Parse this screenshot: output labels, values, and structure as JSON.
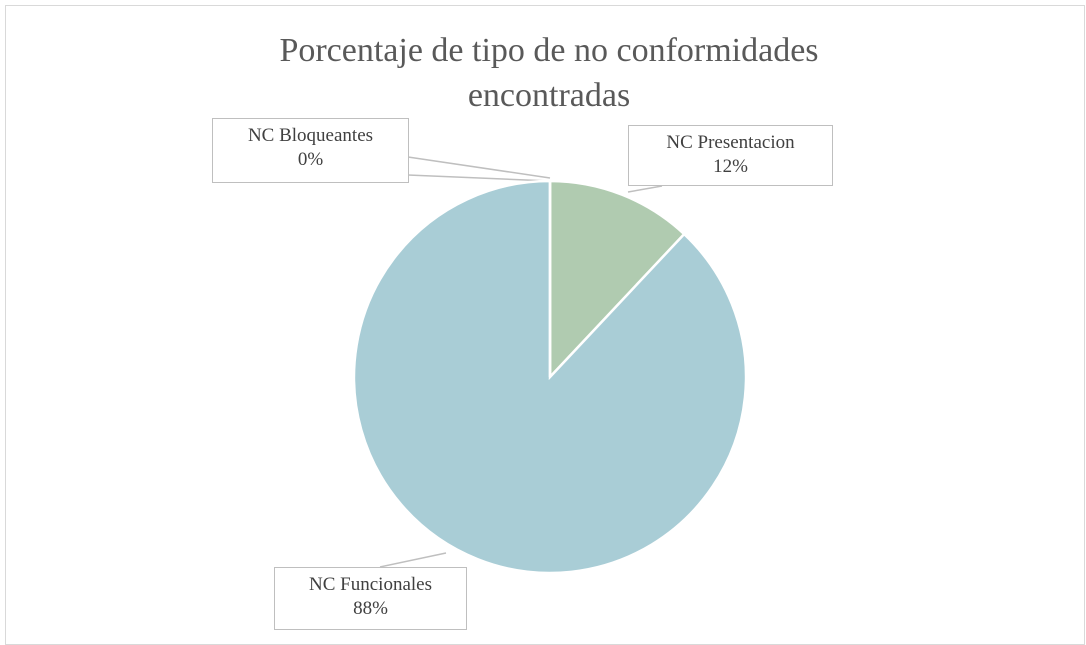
{
  "chart_data": {
    "type": "pie",
    "title": "Porcentaje de tipo de no conformidades encontradas",
    "categories": [
      "NC Presentacion",
      "NC Funcionales",
      "NC Bloqueantes"
    ],
    "values": [
      12,
      88,
      0
    ],
    "value_labels": [
      "12%",
      "88%",
      "0%"
    ],
    "colors": [
      "#b0cbb0",
      "#a9cdd6",
      "#c9d9c0"
    ]
  }
}
